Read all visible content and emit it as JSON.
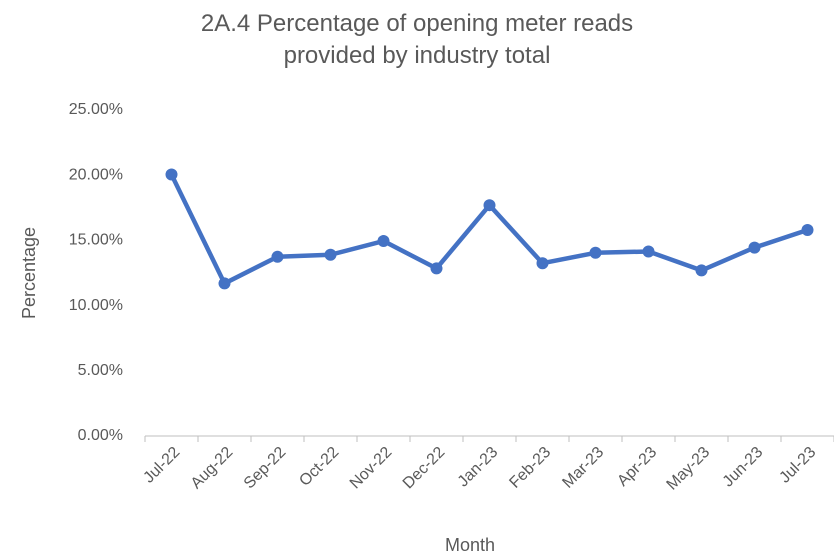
{
  "chart_data": {
    "type": "line",
    "title": "2A.4 Percentage of opening meter reads provided by industry total",
    "x_label": "Month",
    "y_label": "Percentage",
    "categories": [
      "Jul-22",
      "Aug-22",
      "Sep-22",
      "Oct-22",
      "Nov-22",
      "Dec-22",
      "Jan-23",
      "Feb-23",
      "Mar-23",
      "Apr-23",
      "May-23",
      "Jun-23",
      "Jul-23"
    ],
    "series": [
      {
        "name": "Percentage",
        "color": "#4472c4",
        "values": [
          20.05,
          11.7,
          13.75,
          13.9,
          14.95,
          12.85,
          17.7,
          13.25,
          14.05,
          14.15,
          12.7,
          14.45,
          15.8
        ]
      }
    ],
    "ylim": [
      0,
      25
    ],
    "yticks": [
      {
        "value": 0,
        "label": "0.00%"
      },
      {
        "value": 5,
        "label": "5.00%"
      },
      {
        "value": 10,
        "label": "10.00%"
      },
      {
        "value": 15,
        "label": "15.00%"
      },
      {
        "value": 20,
        "label": "20.00%"
      },
      {
        "value": 25,
        "label": "25.00%"
      }
    ],
    "grid": false
  }
}
